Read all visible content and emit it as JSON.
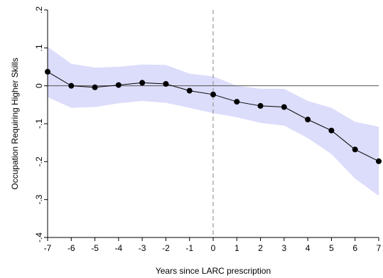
{
  "chart_data": {
    "type": "line",
    "title": "",
    "xlabel": "Years since LARC prescription",
    "ylabel": "Occupation Requiring Higher Skills",
    "xlim": [
      -7,
      7
    ],
    "ylim": [
      -0.4,
      0.2
    ],
    "x_ticks": [
      -7,
      -6,
      -5,
      -4,
      -3,
      -2,
      -1,
      0,
      1,
      2,
      3,
      4,
      5,
      6,
      7
    ],
    "x_tick_labels": [
      "-7",
      "-6",
      "-5",
      "-4",
      "-3",
      "-2",
      "-1",
      "0",
      "1",
      "2",
      "3",
      "4",
      "5",
      "6",
      "7"
    ],
    "y_ticks": [
      -0.4,
      -0.3,
      -0.2,
      -0.1,
      0,
      0.1,
      0.2
    ],
    "y_tick_labels": [
      "-.4",
      "-.3",
      "-.2",
      "-.1",
      "0",
      ".1",
      ".2"
    ],
    "reference_lines": {
      "horizontal_y": 0,
      "vertical_x": 0,
      "vertical_style": "dashed"
    },
    "grid": false,
    "legend": "none",
    "colors": {
      "line": "#000000",
      "marker": "#000000",
      "ci_band": "#dcdcfb",
      "hline": "#555555",
      "vline": "#999999"
    },
    "series": [
      {
        "x": [
          -7,
          -6,
          -5,
          -4,
          -3,
          -2,
          -1,
          0,
          1,
          2,
          3,
          4,
          5,
          6,
          7
        ],
        "y": [
          0.037,
          0.0,
          -0.004,
          0.002,
          0.008,
          0.005,
          -0.013,
          -0.023,
          -0.042,
          -0.053,
          -0.056,
          -0.089,
          -0.118,
          -0.168,
          -0.199
        ],
        "ci_lower": [
          -0.03,
          -0.058,
          -0.056,
          -0.046,
          -0.04,
          -0.045,
          -0.058,
          -0.072,
          -0.083,
          -0.098,
          -0.105,
          -0.138,
          -0.18,
          -0.245,
          -0.29
        ],
        "ci_upper": [
          0.103,
          0.058,
          0.048,
          0.05,
          0.056,
          0.055,
          0.032,
          0.025,
          0.0,
          -0.008,
          -0.008,
          -0.04,
          -0.058,
          -0.095,
          -0.108
        ]
      }
    ]
  }
}
